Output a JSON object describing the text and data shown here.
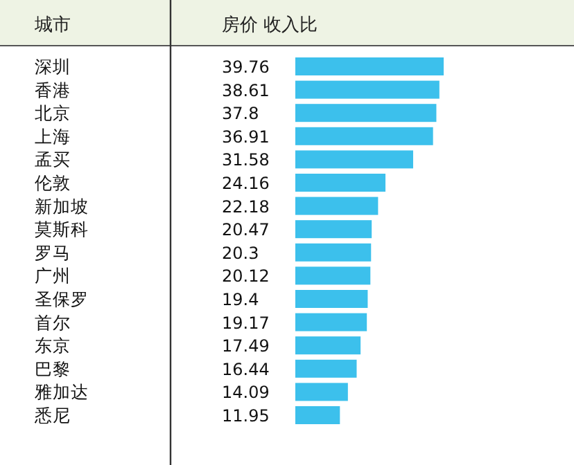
{
  "chart_data": {
    "type": "bar",
    "orientation": "horizontal",
    "ylabel": "城市",
    "xlabel": "房价 收入比",
    "data_labels": true,
    "color": "#3cc0ec",
    "categories": [
      "深圳",
      "香港",
      "北京",
      "上海",
      "孟买",
      "伦敦",
      "新加坡",
      "莫斯科",
      "罗马",
      "广州",
      "圣保罗",
      "首尔",
      "东京",
      "巴黎",
      "雅加达",
      "悉尼"
    ],
    "values": [
      39.76,
      38.61,
      37.8,
      36.91,
      31.58,
      24.16,
      22.18,
      20.47,
      20.3,
      20.12,
      19.4,
      19.17,
      17.49,
      16.44,
      14.09,
      11.95
    ]
  }
}
